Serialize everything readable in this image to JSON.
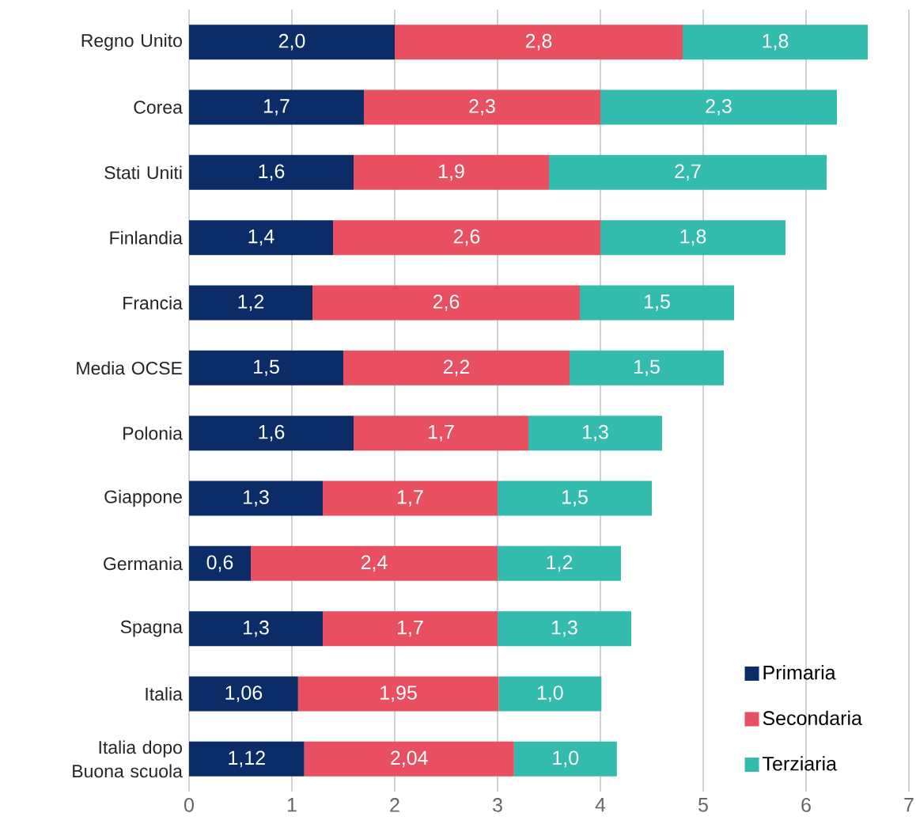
{
  "chart_data": {
    "type": "bar",
    "orientation": "horizontal",
    "stacked": true,
    "categories": [
      "Regno Unito",
      "Corea",
      "Stati Uniti",
      "Finlandia",
      "Francia",
      "Media OCSE",
      "Polonia",
      "Giappone",
      "Germania",
      "Spagna",
      "Italia",
      "Italia dopo Buona scuola"
    ],
    "series": [
      {
        "name": "Primaria",
        "color": "#0b2c66",
        "values": [
          2.0,
          1.7,
          1.6,
          1.4,
          1.2,
          1.5,
          1.6,
          1.3,
          0.6,
          1.3,
          1.06,
          1.12
        ],
        "value_labels": [
          "2,0",
          "1,7",
          "1,6",
          "1,4",
          "1,2",
          "1,5",
          "1,6",
          "1,3",
          "0,6",
          "1,3",
          "1,06",
          "1,12"
        ]
      },
      {
        "name": "Secondaria",
        "color": "#e84f60",
        "values": [
          2.8,
          2.3,
          1.9,
          2.6,
          2.6,
          2.2,
          1.7,
          1.7,
          2.4,
          1.7,
          1.95,
          2.04
        ],
        "value_labels": [
          "2,8",
          "2,3",
          "1,9",
          "2,6",
          "2,6",
          "2,2",
          "1,7",
          "1,7",
          "2,4",
          "1,7",
          "1,95",
          "2,04"
        ]
      },
      {
        "name": "Terziaria",
        "color": "#33bbad",
        "values": [
          1.8,
          2.3,
          2.7,
          1.8,
          1.5,
          1.5,
          1.3,
          1.5,
          1.2,
          1.3,
          1.0,
          1.0
        ],
        "value_labels": [
          "1,8",
          "2,3",
          "2,7",
          "1,8",
          "1,5",
          "1,5",
          "1,3",
          "1,5",
          "1,2",
          "1,3",
          "1,0",
          "1,0"
        ]
      }
    ],
    "xlim": [
      0,
      7
    ],
    "xticks": [
      0,
      1,
      2,
      3,
      4,
      5,
      6,
      7
    ],
    "grid": "x",
    "legend": "bottom right"
  }
}
